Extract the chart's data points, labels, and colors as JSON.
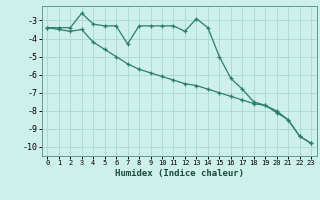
{
  "line1_x": [
    0,
    1,
    2,
    3,
    4,
    5,
    6,
    7,
    8,
    9,
    10,
    11,
    12,
    13,
    14,
    15,
    16,
    17,
    18,
    19,
    20,
    21,
    22,
    23
  ],
  "line1_y": [
    -3.4,
    -3.4,
    -3.4,
    -2.6,
    -3.2,
    -3.3,
    -3.3,
    -4.3,
    -3.3,
    -3.3,
    -3.3,
    -3.3,
    -3.6,
    -2.9,
    -3.4,
    -5.0,
    -6.2,
    -6.8,
    -7.5,
    -7.7,
    -8.1,
    -8.5,
    -9.4,
    -9.8
  ],
  "line2_x": [
    0,
    1,
    2,
    3,
    4,
    5,
    6,
    7,
    8,
    9,
    10,
    11,
    12,
    13,
    14,
    15,
    16,
    17,
    18,
    19,
    20,
    21,
    22,
    23
  ],
  "line2_y": [
    -3.4,
    -3.5,
    -3.6,
    -3.5,
    -4.2,
    -4.6,
    -5.0,
    -5.4,
    -5.7,
    -5.9,
    -6.1,
    -6.3,
    -6.5,
    -6.6,
    -6.8,
    -7.0,
    -7.2,
    -7.4,
    -7.6,
    -7.7,
    -8.0,
    -8.5,
    -9.4,
    -9.8
  ],
  "color": "#2d7d6e",
  "bg_color": "#cef0ea",
  "grid_color": "#a8d8d0",
  "xlabel": "Humidex (Indice chaleur)",
  "ylim": [
    -10.5,
    -2.2
  ],
  "xlim": [
    -0.5,
    23.5
  ],
  "yticks": [
    -3,
    -4,
    -5,
    -6,
    -7,
    -8,
    -9,
    -10
  ],
  "xticks": [
    0,
    1,
    2,
    3,
    4,
    5,
    6,
    7,
    8,
    9,
    10,
    11,
    12,
    13,
    14,
    15,
    16,
    17,
    18,
    19,
    20,
    21,
    22,
    23
  ]
}
